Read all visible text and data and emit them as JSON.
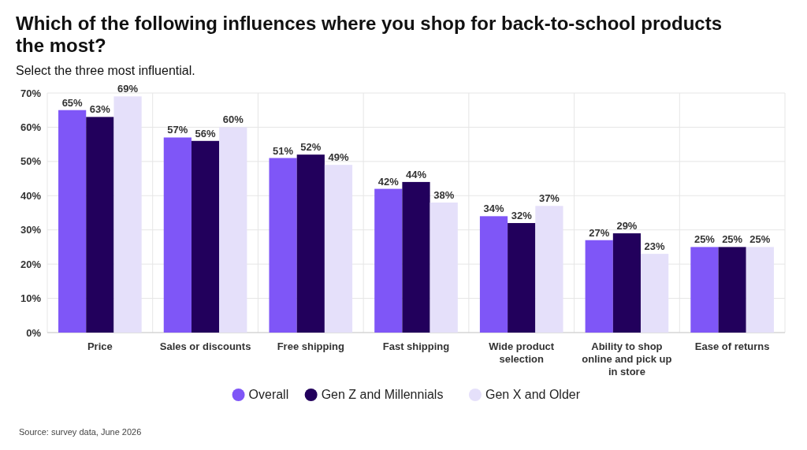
{
  "chart_data": {
    "type": "bar",
    "title": "Which of the following influences where you shop for back-to-school products the most?",
    "subtitle": "Select the three most influential.",
    "categories": [
      "Price",
      "Sales or discounts",
      "Free shipping",
      "Fast shipping",
      "Wide product selection",
      "Ability to shop online and pick up in store",
      "Ease of returns"
    ],
    "series": [
      {
        "name": "Overall",
        "color": "#7f56f7",
        "values": [
          65,
          57,
          51,
          42,
          34,
          27,
          25
        ],
        "value_labels": [
          "65%",
          "57%",
          "51%",
          "42%",
          "34%",
          "27%",
          "25%"
        ]
      },
      {
        "name": "Gen Z and Millennials",
        "color": "#22005c",
        "values": [
          63,
          56,
          52,
          44,
          32,
          29,
          25
        ],
        "value_labels": [
          "63%",
          "56%",
          "52%",
          "44%",
          "32%",
          "29%",
          "25%"
        ]
      },
      {
        "name": "Gen X and Older",
        "color": "#e5e0fa",
        "values": [
          69,
          60,
          49,
          38,
          37,
          23,
          25
        ],
        "value_labels": [
          "69%",
          "60%",
          "49%",
          "38%",
          "37%",
          "23%",
          "25%"
        ]
      }
    ],
    "ylim": [
      0,
      70
    ],
    "yticks": [
      {
        "value": 0,
        "label": "0%"
      },
      {
        "value": 10,
        "label": "10%"
      },
      {
        "value": 20,
        "label": "20%"
      },
      {
        "value": 30,
        "label": "30%"
      },
      {
        "value": 40,
        "label": "40%"
      },
      {
        "value": 50,
        "label": "50%"
      },
      {
        "value": 60,
        "label": "60%"
      },
      {
        "value": 70,
        "label": "70%"
      }
    ],
    "grid": true,
    "legend": "bottom",
    "annotations": [
      "Source: survey data, June 2026"
    ]
  }
}
